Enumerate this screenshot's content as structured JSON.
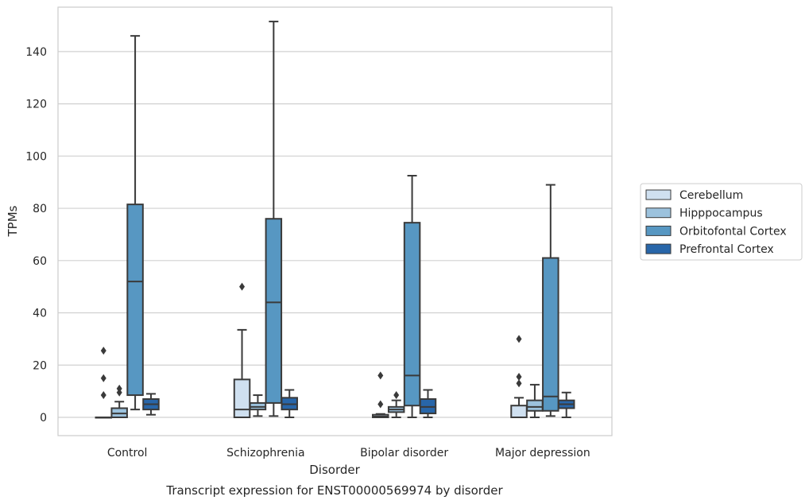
{
  "chart_data": {
    "type": "box",
    "xlabel": "Disorder",
    "ylabel": "TPMs",
    "caption": "Transcript expression for ENST00000569974 by disorder",
    "ylim": [
      -7,
      157
    ],
    "yticks": [
      0,
      20,
      40,
      60,
      80,
      100,
      120,
      140
    ],
    "grid": "horizontal",
    "legend_position": "right",
    "categories": [
      "Control",
      "Schizophrenia",
      "Bipolar disorder",
      "Major depression"
    ],
    "series": [
      {
        "name": "Cerebellum",
        "color": "#cfe0f0",
        "boxes": [
          {
            "whislo": 0,
            "q1": 0,
            "med": 0,
            "q3": 0,
            "whishi": 0,
            "fliers": [
              8.5,
              15,
              25.5
            ]
          },
          {
            "whislo": 0,
            "q1": 0,
            "med": 3,
            "q3": 14.5,
            "whishi": 33.5,
            "fliers": [
              50
            ]
          },
          {
            "whislo": 0,
            "q1": 0,
            "med": 0.3,
            "q3": 1,
            "whishi": 1.3,
            "fliers": [
              5,
              16
            ]
          },
          {
            "whislo": 0,
            "q1": 0,
            "med": 0,
            "q3": 4.5,
            "whishi": 7.5,
            "fliers": [
              13,
              15.5,
              30
            ]
          }
        ]
      },
      {
        "name": "Hipppocampus",
        "color": "#9cc2dd",
        "boxes": [
          {
            "whislo": 0,
            "q1": 0,
            "med": 1.5,
            "q3": 3.5,
            "whishi": 6,
            "fliers": [
              9.5,
              11
            ]
          },
          {
            "whislo": 0.5,
            "q1": 3,
            "med": 4,
            "q3": 5.5,
            "whishi": 8.5,
            "fliers": []
          },
          {
            "whislo": 0,
            "q1": 2,
            "med": 3,
            "q3": 4,
            "whishi": 6.5,
            "fliers": [
              8.5
            ]
          },
          {
            "whislo": 0,
            "q1": 2.5,
            "med": 4,
            "q3": 6.5,
            "whishi": 12.5,
            "fliers": []
          }
        ]
      },
      {
        "name": "Orbitofontal Cortex",
        "color": "#5797c2",
        "boxes": [
          {
            "whislo": 3,
            "q1": 8.5,
            "med": 52,
            "q3": 81.5,
            "whishi": 146,
            "fliers": []
          },
          {
            "whislo": 0.5,
            "q1": 5.5,
            "med": 44,
            "q3": 76,
            "whishi": 151.5,
            "fliers": []
          },
          {
            "whislo": 0,
            "q1": 4.5,
            "med": 16,
            "q3": 74.5,
            "whishi": 92.5,
            "fliers": []
          },
          {
            "whislo": 0.5,
            "q1": 2.5,
            "med": 8,
            "q3": 61,
            "whishi": 89,
            "fliers": []
          }
        ]
      },
      {
        "name": "Prefrontal Cortex",
        "color": "#2866a9",
        "boxes": [
          {
            "whislo": 1,
            "q1": 3,
            "med": 5,
            "q3": 7,
            "whishi": 9,
            "fliers": []
          },
          {
            "whislo": 0,
            "q1": 3,
            "med": 5,
            "q3": 7.5,
            "whishi": 10.5,
            "fliers": []
          },
          {
            "whislo": 0,
            "q1": 1.5,
            "med": 4,
            "q3": 7,
            "whishi": 10.5,
            "fliers": []
          },
          {
            "whislo": 0,
            "q1": 3.5,
            "med": 5,
            "q3": 6.5,
            "whishi": 9.5,
            "fliers": []
          }
        ]
      }
    ]
  }
}
